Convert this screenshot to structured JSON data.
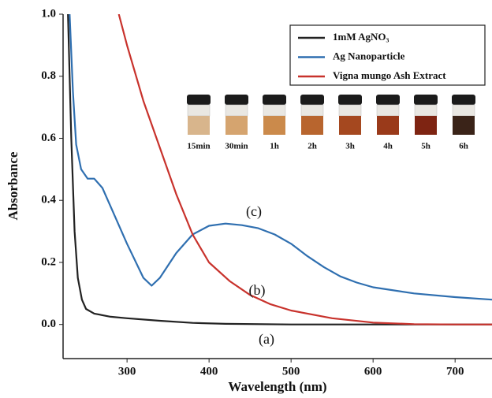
{
  "chart_data": {
    "type": "line",
    "x_label": "Wavelength (nm)",
    "y_label": "Absorbance",
    "xlim": [
      222,
      745
    ],
    "ylim": [
      -0.11,
      1.0
    ],
    "xticks": [
      300,
      400,
      500,
      600,
      700
    ],
    "yticks": [
      {
        "value": 0,
        "label": "0.0"
      },
      0.2,
      0.4,
      0.6,
      0.8,
      {
        "value": 1,
        "label": "1.0"
      }
    ],
    "grid": false,
    "legend": "upper right",
    "series": [
      {
        "name": "1mM AgNO₃",
        "color": "#222222",
        "x": [
          228,
          232,
          236,
          240,
          245,
          250,
          260,
          280,
          300,
          340,
          380,
          420,
          500,
          600,
          745
        ],
        "values": [
          1.0,
          0.6,
          0.3,
          0.15,
          0.08,
          0.05,
          0.035,
          0.025,
          0.02,
          0.012,
          0.005,
          0.002,
          0.0,
          0.0,
          0.0
        ]
      },
      {
        "name": "Ag Nanoparticle",
        "color": "#2f6fb0",
        "x": [
          230,
          234,
          238,
          244,
          252,
          260,
          270,
          280,
          300,
          320,
          330,
          340,
          360,
          380,
          400,
          420,
          440,
          460,
          480,
          500,
          520,
          540,
          560,
          580,
          600,
          650,
          700,
          745
        ],
        "values": [
          1.0,
          0.75,
          0.58,
          0.5,
          0.47,
          0.47,
          0.44,
          0.38,
          0.26,
          0.15,
          0.125,
          0.15,
          0.23,
          0.29,
          0.318,
          0.325,
          0.32,
          0.31,
          0.29,
          0.26,
          0.22,
          0.185,
          0.155,
          0.135,
          0.12,
          0.1,
          0.088,
          0.08
        ]
      },
      {
        "name": "Vigna mungo Ash Extract",
        "color": "#c8322c",
        "x": [
          290,
          300,
          320,
          340,
          360,
          380,
          400,
          425,
          450,
          475,
          500,
          550,
          600,
          650,
          700,
          745
        ],
        "values": [
          1.0,
          0.9,
          0.72,
          0.57,
          0.42,
          0.29,
          0.2,
          0.14,
          0.095,
          0.065,
          0.045,
          0.02,
          0.006,
          0.001,
          0.0,
          0.0
        ]
      }
    ],
    "annotations": [
      "(a)",
      "(b)",
      "(c)"
    ],
    "inset_labels": [
      "15min",
      "30min",
      "1h",
      "2h",
      "3h",
      "4h",
      "5h",
      "6h"
    ]
  }
}
